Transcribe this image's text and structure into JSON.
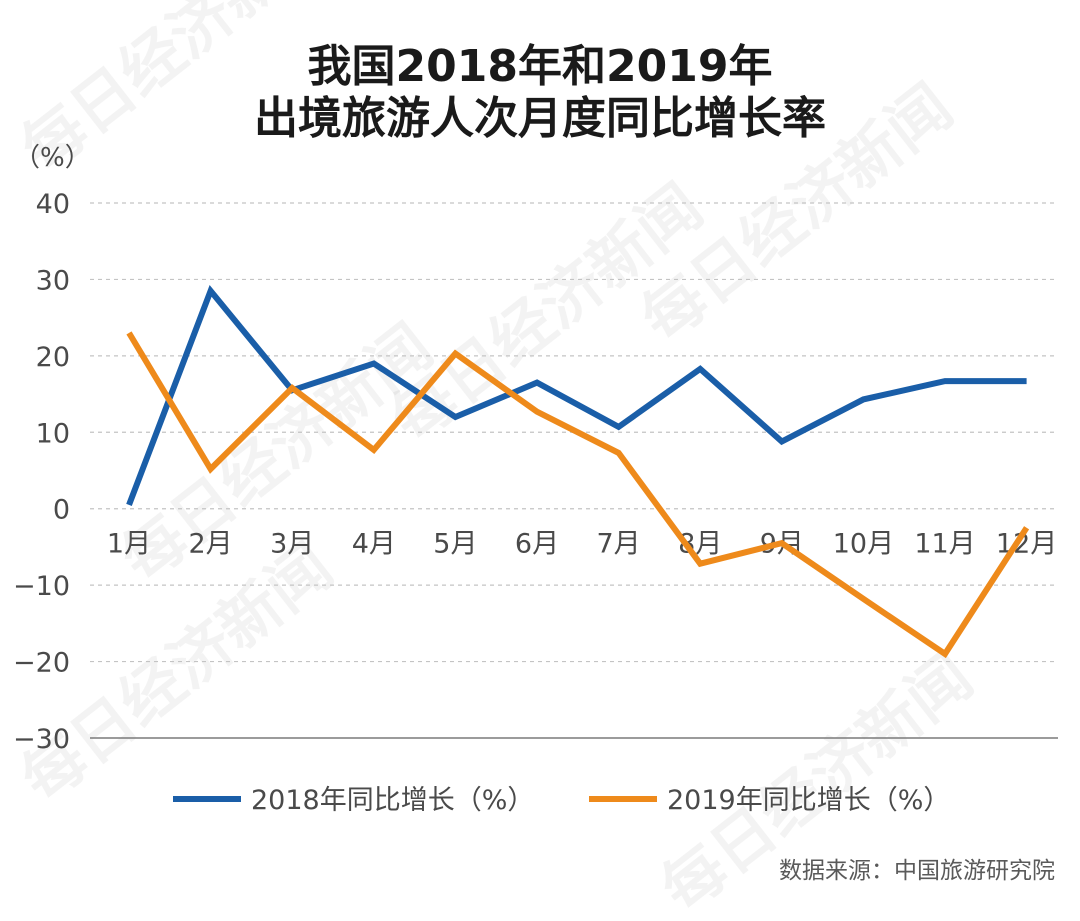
{
  "watermark_text": "每日经济新闻",
  "chart_data": {
    "type": "line",
    "title_lines": [
      "我国2018年和2019年",
      "出境旅游人次月度同比增长率"
    ],
    "y_unit": "（%）",
    "categories": [
      "1月",
      "2月",
      "3月",
      "4月",
      "5月",
      "6月",
      "7月",
      "8月",
      "9月",
      "10月",
      "11月",
      "12月"
    ],
    "series": [
      {
        "name": "2018年同比增长（%）",
        "color": "#1a5ea8",
        "values": [
          0.5,
          28.5,
          15.5,
          19.0,
          12.0,
          16.5,
          10.7,
          18.3,
          8.8,
          14.3,
          16.7,
          16.7
        ]
      },
      {
        "name": "2019年同比增长（%）",
        "color": "#ee8a1b",
        "values": [
          23.0,
          5.2,
          15.8,
          7.7,
          20.3,
          12.7,
          7.3,
          -7.2,
          -4.5,
          -11.8,
          -19.0,
          -2.5
        ]
      }
    ],
    "ylim": [
      -30,
      40
    ],
    "yticks": [
      40,
      30,
      20,
      10,
      0,
      -10,
      -20,
      -30
    ],
    "ytick_labels": [
      "40",
      "30",
      "20",
      "10",
      "0",
      "−10",
      "−20",
      "−30"
    ],
    "grid": true,
    "legend_position": "bottom-center",
    "source": "数据来源：中国旅游研究院"
  }
}
